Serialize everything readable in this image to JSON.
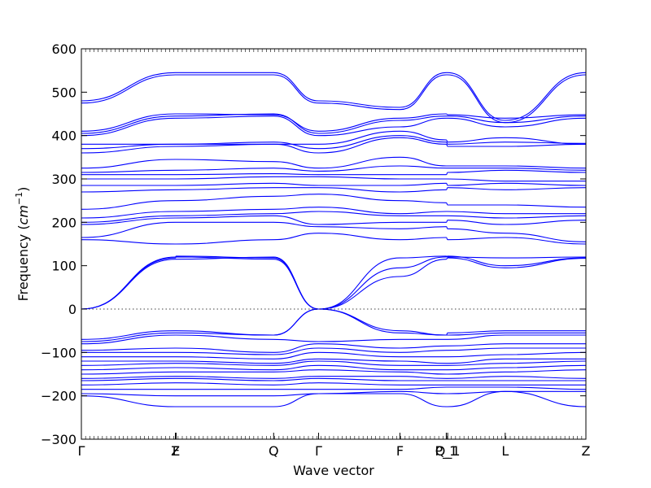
{
  "chart_data": {
    "type": "line",
    "title": "",
    "xlabel": "Wave vector",
    "ylabel_prefix": "Frequency (",
    "ylabel_unit_base": "cm",
    "ylabel_unit_exp": "−1",
    "ylabel_suffix": ")",
    "ylim": [
      -300,
      600
    ],
    "yticks": [
      -300,
      -200,
      -100,
      0,
      100,
      200,
      300,
      400,
      500,
      600
    ],
    "xlim": [
      0,
      7.19
    ],
    "high_symmetry_points": [
      {
        "label": "Γ",
        "x": 0
      },
      {
        "label": "Z",
        "x": 1.34
      },
      {
        "label": "F",
        "x": 1.35
      },
      {
        "label": "Q",
        "x": 2.74
      },
      {
        "label": "Γ",
        "x": 3.38
      },
      {
        "label": "F",
        "x": 4.54
      },
      {
        "label": "P_1",
        "x": 5.2
      },
      {
        "label": "Q_1",
        "x": 5.22
      },
      {
        "label": "L",
        "x": 6.04
      },
      {
        "label": "Z",
        "x": 7.19
      }
    ],
    "grid": false,
    "legend": "none",
    "line_color": "#0000ff",
    "series_values_at_symmetry_points": [
      {
        "values": [
          0,
          115,
          115,
          120,
          0,
          75,
          115,
          118,
          95,
          117
        ]
      },
      {
        "values": [
          0,
          120,
          122,
          118,
          0,
          95,
          120,
          122,
          100,
          118
        ]
      },
      {
        "values": [
          0,
          118,
          120,
          115,
          0,
          118,
          122,
          120,
          118,
          120
        ]
      },
      {
        "values": [
          160,
          150,
          150,
          160,
          175,
          160,
          165,
          160,
          165,
          150
        ]
      },
      {
        "values": [
          165,
          200,
          200,
          200,
          190,
          185,
          190,
          185,
          175,
          155
        ]
      },
      {
        "values": [
          195,
          210,
          210,
          215,
          195,
          200,
          200,
          205,
          195,
          205
        ]
      },
      {
        "values": [
          200,
          215,
          215,
          220,
          225,
          215,
          215,
          215,
          210,
          215
        ]
      },
      {
        "values": [
          210,
          225,
          225,
          230,
          235,
          220,
          225,
          225,
          220,
          220
        ]
      },
      {
        "values": [
          230,
          250,
          250,
          260,
          265,
          250,
          245,
          240,
          240,
          235
        ]
      },
      {
        "values": [
          270,
          275,
          275,
          280,
          280,
          270,
          275,
          280,
          275,
          280
        ]
      },
      {
        "values": [
          285,
          285,
          285,
          290,
          285,
          285,
          290,
          285,
          290,
          285
        ]
      },
      {
        "values": [
          300,
          300,
          300,
          305,
          305,
          300,
          300,
          300,
          295,
          295
        ]
      },
      {
        "values": [
          310,
          310,
          310,
          312,
          310,
          310,
          310,
          315,
          320,
          315
        ]
      },
      {
        "values": [
          315,
          320,
          320,
          325,
          318,
          330,
          325,
          325,
          325,
          320
        ]
      },
      {
        "values": [
          325,
          345,
          345,
          340,
          325,
          350,
          330,
          330,
          330,
          325
        ]
      },
      {
        "values": [
          360,
          375,
          375,
          380,
          360,
          395,
          380,
          375,
          375,
          380
        ]
      },
      {
        "values": [
          370,
          380,
          380,
          385,
          370,
          400,
          385,
          380,
          385,
          382
        ]
      },
      {
        "values": [
          380,
          380,
          380,
          380,
          380,
          410,
          390,
          385,
          395,
          380
        ]
      },
      {
        "values": [
          400,
          440,
          440,
          445,
          400,
          420,
          440,
          440,
          420,
          440
        ]
      },
      {
        "values": [
          405,
          445,
          445,
          450,
          405,
          435,
          445,
          445,
          430,
          445
        ]
      },
      {
        "values": [
          410,
          450,
          450,
          448,
          410,
          440,
          450,
          448,
          440,
          448
        ]
      },
      {
        "values": [
          475,
          540,
          540,
          540,
          475,
          460,
          540,
          540,
          430,
          540
        ]
      },
      {
        "values": [
          480,
          545,
          545,
          545,
          480,
          465,
          545,
          545,
          435,
          545
        ]
      },
      {
        "values": [
          -70,
          -50,
          -50,
          -60,
          0,
          -50,
          -60,
          -55,
          -50,
          -50
        ]
      },
      {
        "values": [
          -75,
          -55,
          -55,
          -60,
          0,
          -55,
          -60,
          -60,
          -55,
          -55
        ]
      },
      {
        "values": [
          -80,
          -60,
          -60,
          -70,
          -75,
          -70,
          -70,
          -70,
          -60,
          -60
        ]
      },
      {
        "values": [
          -95,
          -90,
          -90,
          -100,
          -80,
          -90,
          -85,
          -85,
          -80,
          -80
        ]
      },
      {
        "values": [
          -100,
          -100,
          -100,
          -105,
          -90,
          -100,
          -95,
          -95,
          -90,
          -90
        ]
      },
      {
        "values": [
          -110,
          -110,
          -110,
          -115,
          -100,
          -110,
          -110,
          -110,
          -105,
          -100
        ]
      },
      {
        "values": [
          -120,
          -120,
          -120,
          -125,
          -115,
          -120,
          -125,
          -125,
          -115,
          -115
        ]
      },
      {
        "values": [
          -130,
          -125,
          -125,
          -130,
          -120,
          -130,
          -130,
          -130,
          -125,
          -120
        ]
      },
      {
        "values": [
          -140,
          -135,
          -135,
          -140,
          -130,
          -140,
          -140,
          -140,
          -135,
          -130
        ]
      },
      {
        "values": [
          -150,
          -145,
          -145,
          -145,
          -140,
          -145,
          -150,
          -150,
          -145,
          -140
        ]
      },
      {
        "values": [
          -160,
          -155,
          -155,
          -160,
          -155,
          -155,
          -160,
          -160,
          -155,
          -160
        ]
      },
      {
        "values": [
          -165,
          -160,
          -160,
          -165,
          -160,
          -165,
          -165,
          -165,
          -165,
          -165
        ]
      },
      {
        "values": [
          -175,
          -170,
          -170,
          -175,
          -170,
          -175,
          -175,
          -175,
          -175,
          -175
        ]
      },
      {
        "values": [
          -185,
          -185,
          -185,
          -185,
          -185,
          -185,
          -180,
          -180,
          -180,
          -185
        ]
      },
      {
        "values": [
          -195,
          -200,
          -200,
          -200,
          -195,
          -190,
          -195,
          -195,
          -190,
          -190
        ]
      },
      {
        "values": [
          -200,
          -225,
          -225,
          -225,
          -195,
          -195,
          -225,
          -225,
          -190,
          -225
        ]
      }
    ]
  }
}
